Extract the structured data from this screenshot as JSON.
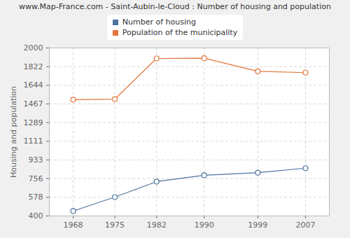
{
  "chart_data": {
    "type": "line",
    "title": "www.Map-France.com - Saint-Aubin-le-Cloud : Number of housing and population",
    "y_label": "Housing and population",
    "x": [
      1968,
      1975,
      1982,
      1990,
      1999,
      2007
    ],
    "series": [
      {
        "name": "Number of housing",
        "color": "#4d73a0",
        "values": [
          447,
          580,
          727,
          787,
          812,
          855
        ]
      },
      {
        "name": "Population of the municipality",
        "color": "#e4743c",
        "values": [
          1508,
          1513,
          1900,
          1902,
          1778,
          1765
        ]
      }
    ],
    "xlim": [
      1964,
      2011
    ],
    "xticks": [
      1968,
      1975,
      1982,
      1990,
      1999,
      2007
    ],
    "ylim": [
      400,
      2000
    ],
    "yticks": [
      400,
      578,
      756,
      933,
      1111,
      1289,
      1467,
      1644,
      1822,
      2000
    ],
    "grid": true,
    "legend": "top",
    "marker": "circle"
  }
}
